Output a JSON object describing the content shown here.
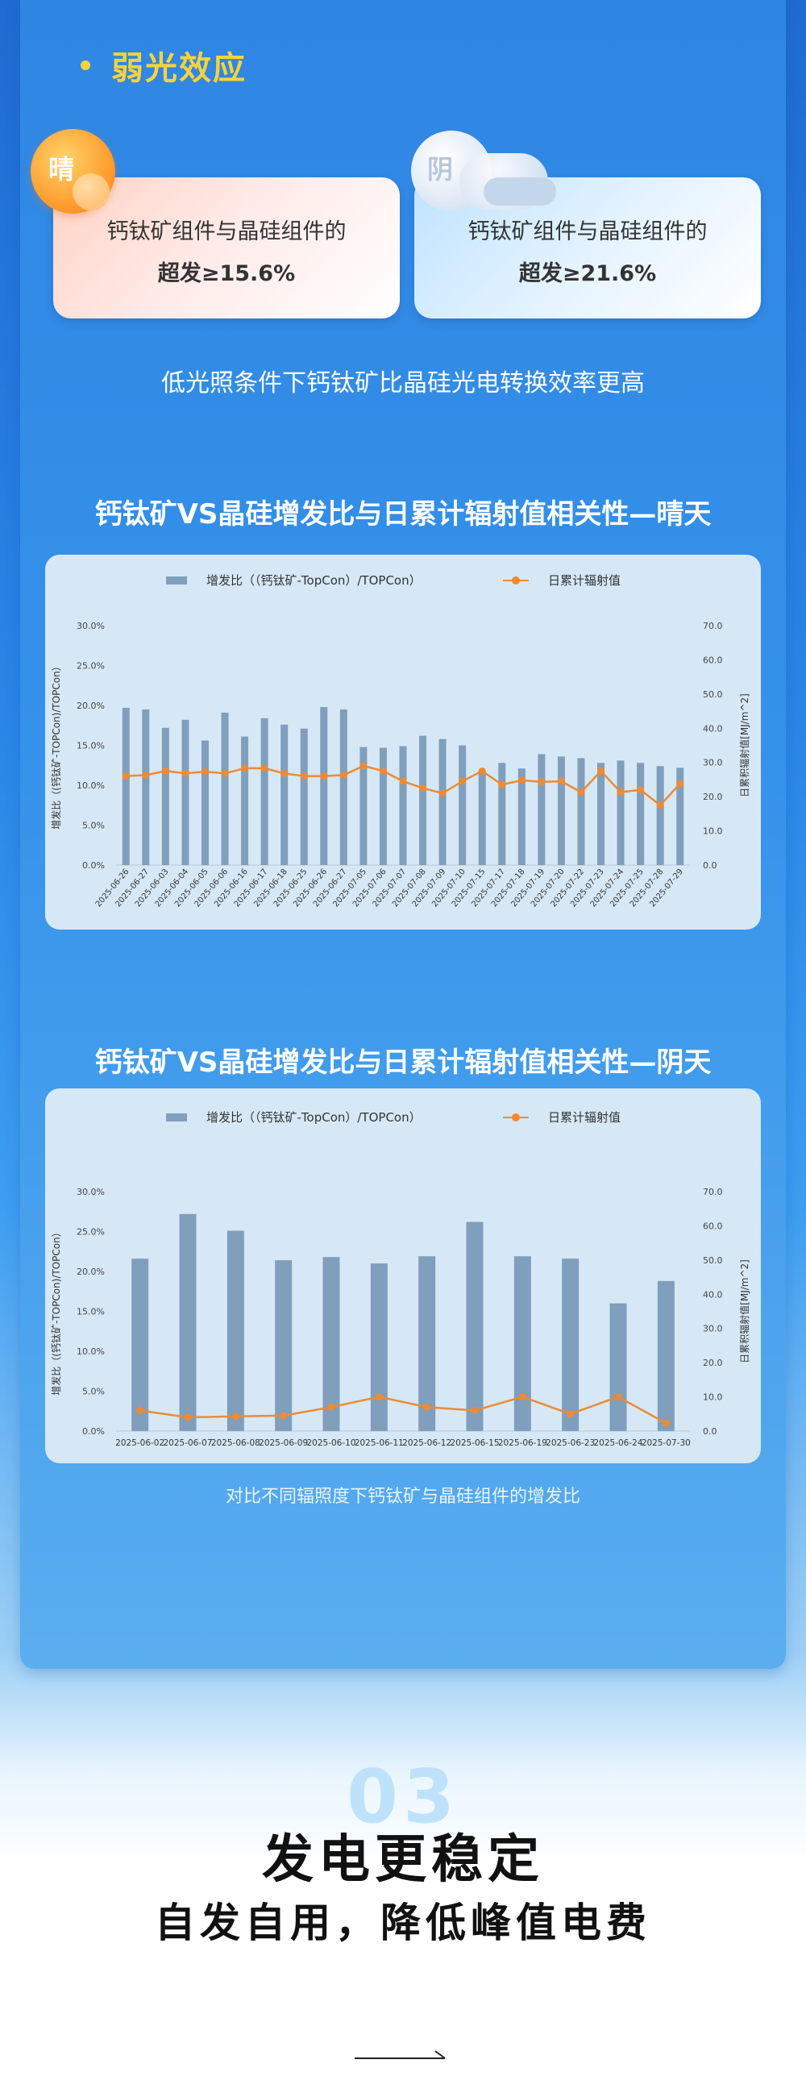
{
  "section": {
    "title": "弱光效应"
  },
  "cards": [
    {
      "badge": "晴",
      "line1": "钙钛矿组件与晶硅组件的",
      "line2": "超发≥15.6%"
    },
    {
      "badge": "阴",
      "line1": "钙钛矿组件与晶硅组件的",
      "line2": "超发≥21.6%"
    }
  ],
  "subtitle": "低光照条件下钙钛矿比晶硅光电转换效率更高",
  "colors": {
    "bar": "#7f9fbc",
    "line": "#ee8a34",
    "accent": "#f6d33a"
  },
  "charts": [
    {
      "title": "钙钛矿VS晶硅增发比与日累计辐射值相关性—晴天",
      "legend": {
        "bar": "增发比（（钙钛矿-TopCon）/TOPCon）",
        "line": "日累计辐射值"
      },
      "ylabel_left": "增发比（(钙钛矿-TOPCon)/TOPCon）",
      "ylabel_right": "日累积辐射值[MJ/m^2]",
      "left_ticks": [
        "0.0%",
        "5.0%",
        "10.0%",
        "15.0%",
        "20.0%",
        "25.0%",
        "30.0%"
      ],
      "right_ticks": [
        "0.0",
        "10.0",
        "20.0",
        "30.0",
        "40.0",
        "50.0",
        "60.0",
        "70.0"
      ]
    },
    {
      "title": "钙钛矿VS晶硅增发比与日累计辐射值相关性—阴天",
      "legend": {
        "bar": "增发比（（钙钛矿-TopCon）/TOPCon）",
        "line": "日累计辐射值"
      },
      "ylabel_left": "增发比（(钙钛矿-TOPCon)/TOPCon）",
      "ylabel_right": "日累积辐射值[MJ/m^2]",
      "left_ticks": [
        "0.0%",
        "5.0%",
        "10.0%",
        "15.0%",
        "20.0%",
        "25.0%",
        "30.0%"
      ],
      "right_ticks": [
        "0.0",
        "10.0",
        "20.0",
        "30.0",
        "40.0",
        "50.0",
        "60.0",
        "70.0"
      ]
    }
  ],
  "chart_data": [
    {
      "type": "bar",
      "title": "钙钛矿VS晶硅增发比与日累计辐射值相关性—晴天",
      "categories": [
        "2025-06-26",
        "2025-06-27",
        "2025-06-03",
        "2025-06-04",
        "2025-06-05",
        "2025-06-06",
        "2025-06-16",
        "2025-06-17",
        "2025-06-18",
        "2025-06-25",
        "2025-06-26",
        "2025-06-27",
        "2025-07-05",
        "2025-07-06",
        "2025-07-07",
        "2025-07-08",
        "2025-07-09",
        "2025-07-10",
        "2025-07-15",
        "2025-07-17",
        "2025-07-18",
        "2025-07-19",
        "2025-07-20",
        "2025-07-22",
        "2025-07-23",
        "2025-07-24",
        "2025-07-25",
        "2025-07-28",
        "2025-07-29"
      ],
      "series": [
        {
          "name": "增发比（（钙钛矿-TopCon）/TOPCon）",
          "axis": "left",
          "unit": "%",
          "values": [
            19.7,
            19.5,
            17.2,
            18.2,
            15.6,
            19.1,
            16.1,
            18.4,
            17.6,
            17.1,
            19.8,
            19.5,
            14.8,
            14.7,
            14.9,
            16.2,
            15.8,
            15.0,
            11.9,
            12.8,
            12.1,
            13.9,
            13.6,
            13.4,
            12.8,
            13.1,
            12.8,
            12.4,
            12.2
          ]
        },
        {
          "name": "日累计辐射值",
          "axis": "right",
          "type": "line",
          "values": [
            26.0,
            26.3,
            27.5,
            26.8,
            27.3,
            26.8,
            28.3,
            28.3,
            26.8,
            26.0,
            26.0,
            26.3,
            29.0,
            27.5,
            24.5,
            22.5,
            21.0,
            24.5,
            27.5,
            23.5,
            24.8,
            24.3,
            24.5,
            21.3,
            27.5,
            21.3,
            22.0,
            17.5,
            23.8
          ]
        }
      ],
      "ylim_left": [
        0,
        30
      ],
      "ylim_right": [
        0,
        70
      ]
    },
    {
      "type": "bar",
      "title": "钙钛矿VS晶硅增发比与日累计辐射值相关性—阴天",
      "categories": [
        "2025-06-02",
        "2025-06-07",
        "2025-06-08",
        "2025-06-09",
        "2025-06-10",
        "2025-06-11",
        "2025-06-12",
        "2025-06-15",
        "2025-06-19",
        "2025-06-23",
        "2025-06-24",
        "2025-07-30"
      ],
      "series": [
        {
          "name": "增发比（（钙钛矿-TopCon）/TOPCon）",
          "axis": "left",
          "unit": "%",
          "values": [
            21.6,
            27.2,
            25.1,
            21.4,
            21.8,
            21.0,
            21.9,
            26.2,
            21.9,
            21.6,
            16.0,
            18.8
          ]
        },
        {
          "name": "日累计辐射值",
          "axis": "right",
          "type": "line",
          "values": [
            6.0,
            4.0,
            4.3,
            4.5,
            7.0,
            10.0,
            7.0,
            6.0,
            10.0,
            5.0,
            10.0,
            2.3
          ]
        }
      ],
      "ylim_left": [
        0,
        30
      ],
      "ylim_right": [
        0,
        70
      ]
    }
  ],
  "caption": "对比不同辐照度下钙钛矿与晶硅组件的增发比",
  "footer": {
    "number": "03",
    "headline": "发电更稳定",
    "subhead": "自发自用，降低峰值电费"
  }
}
